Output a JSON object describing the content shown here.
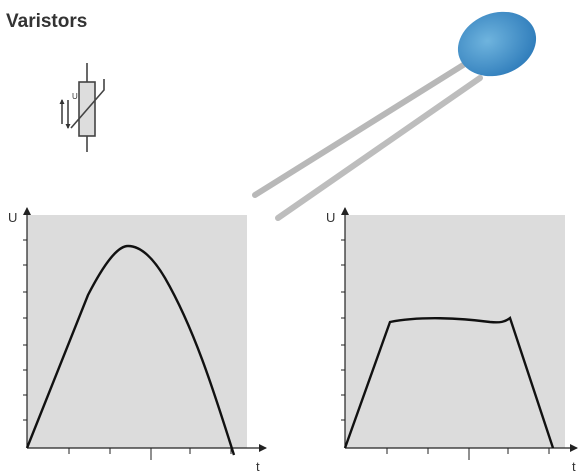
{
  "title": "Varistors",
  "symbol": {
    "label": "U"
  },
  "graphs": [
    {
      "y_label": "U",
      "x_label": "t"
    },
    {
      "y_label": "U",
      "x_label": "t"
    }
  ]
}
